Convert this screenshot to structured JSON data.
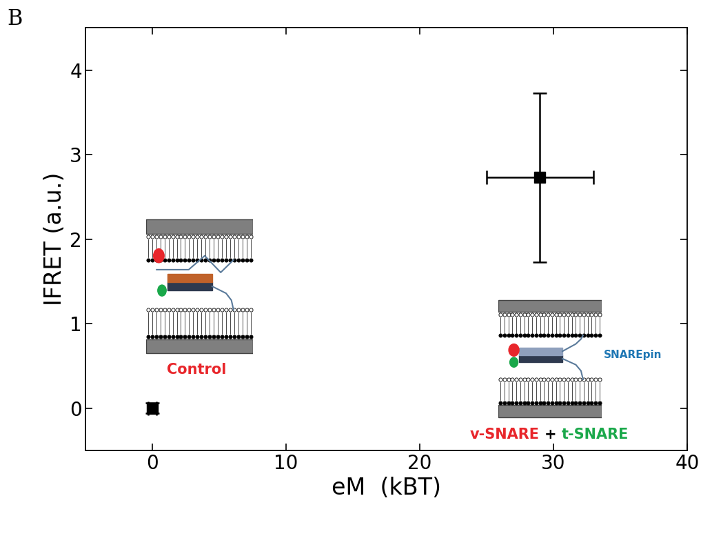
{
  "chart_data": {
    "type": "scatter",
    "panel_label": "B",
    "x_label": "eM  (kBT)",
    "y_label": "IFRET (a.u.)",
    "x": [
      0,
      29
    ],
    "values": [
      0,
      2.73
    ],
    "x_error": [
      0.3,
      4
    ],
    "y_error": [
      0.06,
      1.0
    ],
    "color": "#000000",
    "marker": "square",
    "xlim": [
      -5,
      40
    ],
    "xticks": [
      0,
      10,
      20,
      30,
      40
    ],
    "ylim": [
      -0.5,
      4.5
    ],
    "yticks": [
      0,
      1,
      2,
      3,
      4
    ],
    "insets": [
      {
        "label": [
          "Control"
        ],
        "label_colors": [
          "#e8262b"
        ]
      },
      {
        "label": [
          "v-SNARE",
          "+",
          "t-SNARE"
        ],
        "label_colors": [
          "#e8262b",
          "#000000",
          "#1aa84a"
        ],
        "sublabel": "SNAREpin"
      }
    ]
  }
}
